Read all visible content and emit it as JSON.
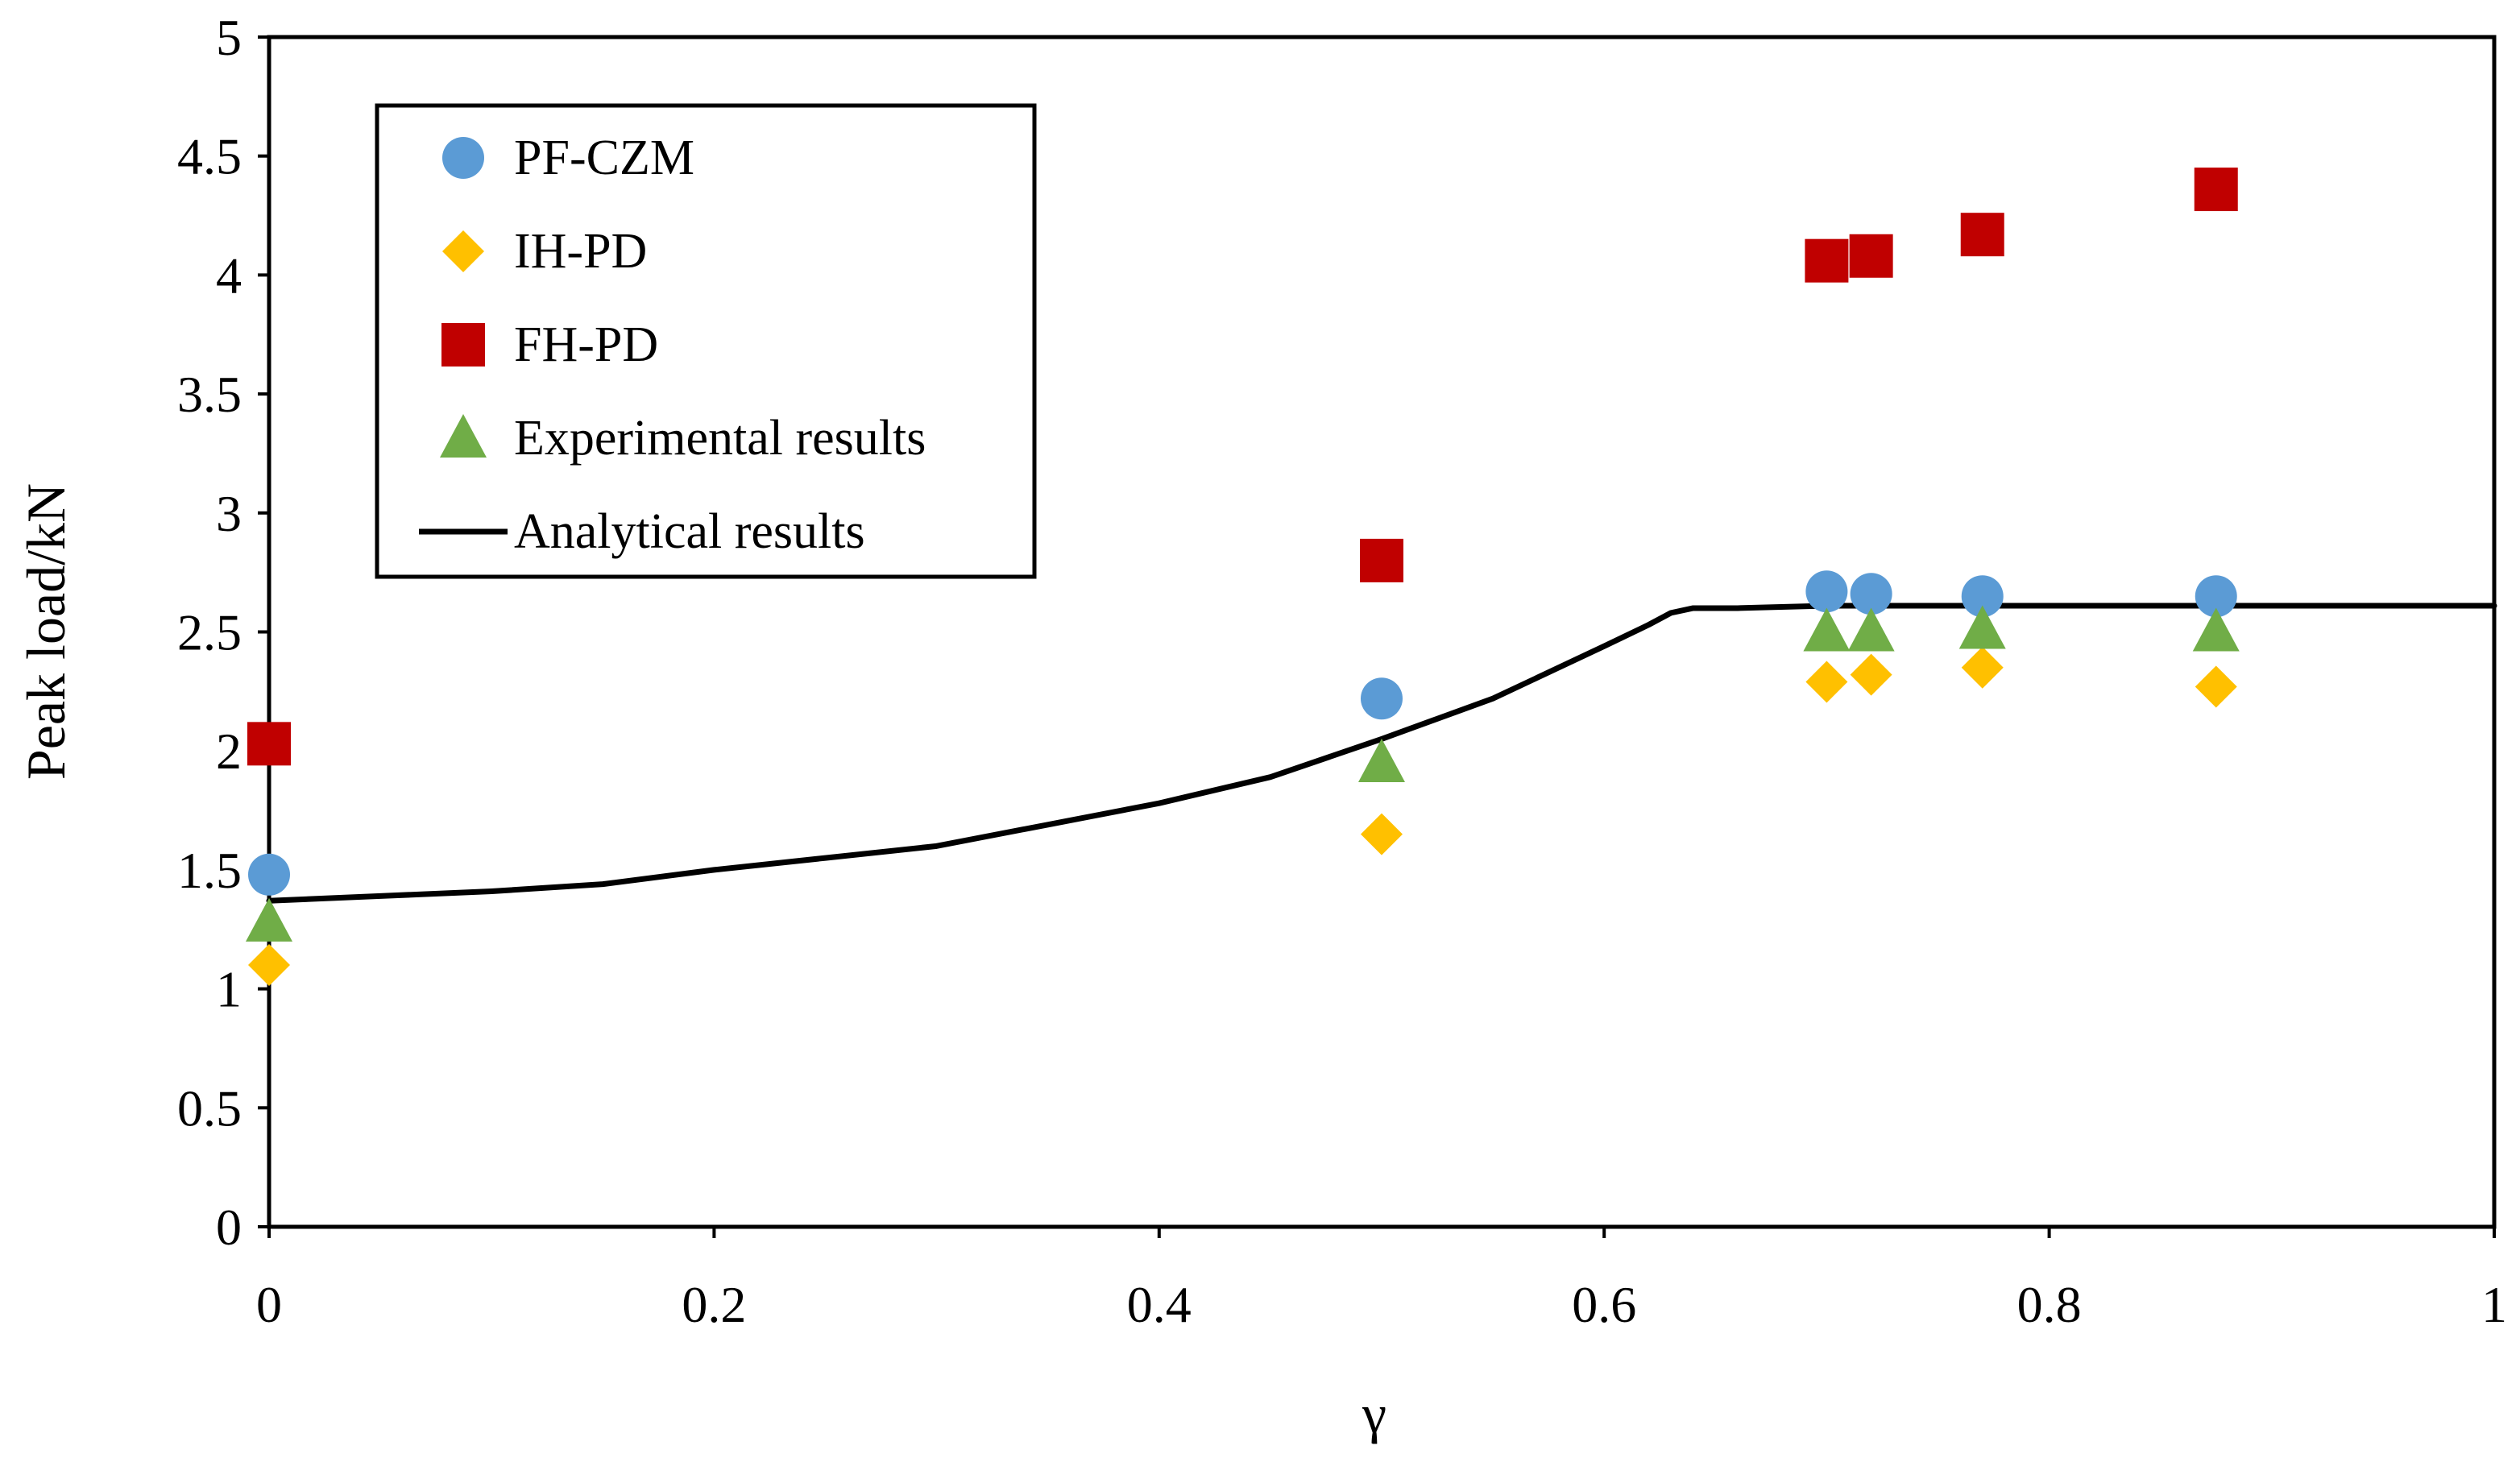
{
  "chart_data": {
    "type": "scatter",
    "title": "",
    "xlabel": "γ",
    "ylabel": "Peak load/kN",
    "xlim": [
      0,
      1
    ],
    "ylim": [
      0,
      5
    ],
    "x_ticks": [
      "0",
      "0.2",
      "0.4",
      "0.6",
      "0.8",
      "1"
    ],
    "y_ticks": [
      "0",
      "0.5",
      "1",
      "1.5",
      "2",
      "2.5",
      "3",
      "3.5",
      "4",
      "4.5",
      "5"
    ],
    "grid": false,
    "legend_position": "top-left",
    "series": [
      {
        "name": "PF-CZM",
        "marker": "circle",
        "color": "#5B9BD5",
        "x": [
          0,
          0.5,
          0.7,
          0.72,
          0.77,
          0.875
        ],
        "y": [
          1.48,
          2.22,
          2.67,
          2.66,
          2.65,
          2.65
        ]
      },
      {
        "name": "IH-PD",
        "marker": "diamond",
        "color": "#FFC000",
        "x": [
          0,
          0.5,
          0.7,
          0.72,
          0.77,
          0.875
        ],
        "y": [
          1.1,
          1.65,
          2.29,
          2.32,
          2.35,
          2.27
        ]
      },
      {
        "name": "FH-PD",
        "marker": "square",
        "color": "#C00000",
        "x": [
          0,
          0.5,
          0.7,
          0.72,
          0.77,
          0.875
        ],
        "y": [
          2.03,
          2.8,
          4.06,
          4.08,
          4.17,
          4.36
        ]
      },
      {
        "name": "Experimental results",
        "marker": "triangle",
        "color": "#70AD47",
        "x": [
          0,
          0.5,
          0.7,
          0.72,
          0.77,
          0.875
        ],
        "y": [
          1.28,
          1.95,
          2.5,
          2.5,
          2.51,
          2.5
        ]
      },
      {
        "name": "Analytical results",
        "marker": "line",
        "color": "#000000",
        "x": [
          0,
          0.05,
          0.1,
          0.15,
          0.2,
          0.25,
          0.3,
          0.35,
          0.4,
          0.45,
          0.5,
          0.55,
          0.6,
          0.62,
          0.63,
          0.64,
          0.66,
          0.7,
          0.8,
          0.9,
          1.0
        ],
        "y": [
          1.37,
          1.39,
          1.41,
          1.44,
          1.5,
          1.55,
          1.6,
          1.69,
          1.78,
          1.89,
          2.05,
          2.22,
          2.44,
          2.53,
          2.58,
          2.6,
          2.6,
          2.61,
          2.61,
          2.61,
          2.61
        ]
      }
    ]
  }
}
